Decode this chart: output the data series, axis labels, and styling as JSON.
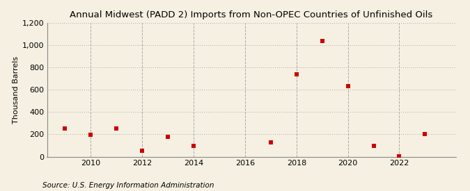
{
  "title": "Annual Midwest (PADD 2) Imports from Non-OPEC Countries of Unfinished Oils",
  "ylabel": "Thousand Barrels",
  "source": "Source: U.S. Energy Information Administration",
  "background_color": "#f5f0e1",
  "data_color": "#cc0000",
  "years": [
    2009,
    2010,
    2011,
    2012,
    2013,
    2014,
    2017,
    2018,
    2019,
    2020,
    2021,
    2022,
    2023
  ],
  "values": [
    255,
    195,
    250,
    50,
    175,
    95,
    125,
    740,
    1040,
    635,
    95,
    5,
    200
  ],
  "xlim": [
    2008.3,
    2024.2
  ],
  "ylim": [
    0,
    1200
  ],
  "yticks": [
    0,
    200,
    400,
    600,
    800,
    1000,
    1200
  ],
  "xticks": [
    2010,
    2012,
    2014,
    2016,
    2018,
    2020,
    2022
  ],
  "title_fontsize": 9.5,
  "label_fontsize": 8,
  "tick_fontsize": 8,
  "source_fontsize": 7.5
}
